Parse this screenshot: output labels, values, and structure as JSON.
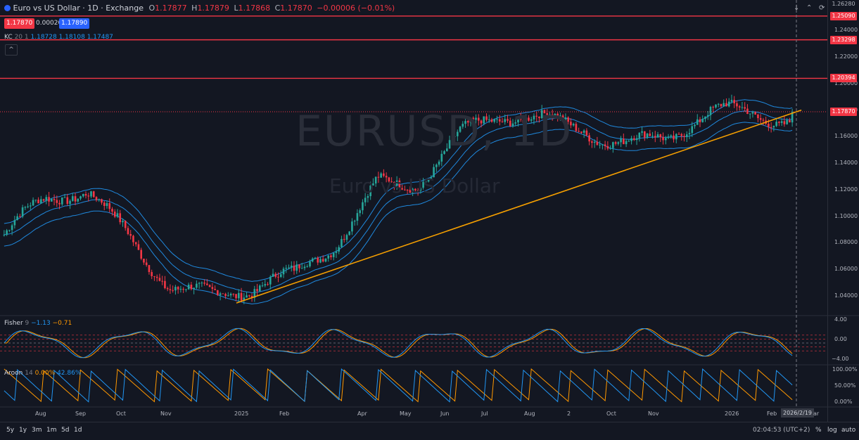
{
  "header": {
    "symbol_title": "Euro vs US Dollar · 1D · Exchange",
    "o_label": "O",
    "o_value": "1.17877",
    "h_label": "H",
    "h_value": "1.17879",
    "l_label": "L",
    "l_value": "1.17868",
    "c_label": "C",
    "c_value": "1.17870",
    "change": "−0.00006 (−0.01%)"
  },
  "trade": {
    "sell": "1.17870",
    "spread": "0.00020",
    "buy": "1.17890"
  },
  "kc": {
    "name": "KC",
    "params": "20 1",
    "v1": "1.18728",
    "v2": "1.18108",
    "v3": "1.17487"
  },
  "fisher": {
    "name": "Fisher",
    "params": "9",
    "v1": "−1.13",
    "v2": "−0.71"
  },
  "aroon": {
    "name": "Aroon",
    "params": "14",
    "v1": "0.00%",
    "v2": "42.86%"
  },
  "watermark": {
    "ticker": "EURUSD, 1D",
    "description": "Euro vs US Dollar"
  },
  "price_scale": {
    "ticks": [
      "1.24000",
      "1.22000",
      "1.20000",
      "1.18000",
      "1.16000",
      "1.14000",
      "1.12000",
      "1.10000",
      "1.08000",
      "1.06000",
      "1.04000"
    ],
    "top_tick": "1.26280",
    "labels": [
      {
        "text": "1.25090",
        "kind": "level"
      },
      {
        "text": "1.23298",
        "kind": "level"
      },
      {
        "text": "1.20394",
        "kind": "level"
      },
      {
        "text": "1.17870",
        "kind": "last"
      }
    ]
  },
  "fisher_scale": [
    "4.00",
    "0.00",
    "−4.00"
  ],
  "aroon_scale": [
    "100.00%",
    "50.00%",
    "0.00%"
  ],
  "x_axis": [
    "Aug",
    "Sep",
    "Oct",
    "Nov",
    "2025",
    "Feb",
    "Apr",
    "May",
    "Jun",
    "Jul",
    "Aug",
    "2",
    "Oct",
    "Nov",
    "2026",
    "Feb"
  ],
  "x_axis_crosshair": "2026/2/19",
  "x_axis_cut": "ar",
  "timeframes": [
    "5y",
    "1y",
    "3m",
    "1m",
    "5d",
    "1d"
  ],
  "bottom_right": {
    "time": "02:04:53 (UTC+2)",
    "percent": "%",
    "log": "log",
    "auto": "auto"
  },
  "colors": {
    "background": "#131722",
    "bullish": "#26a69a",
    "bearish": "#f23645",
    "keltner": "#2196f3",
    "trendline": "#f59f00",
    "level_line": "#f23645",
    "fisher_line1": "#2196f3",
    "fisher_line2": "#ff9800",
    "aroon_up": "#ff9800",
    "aroon_down": "#2196f3"
  },
  "chart_data": {
    "type": "candlestick",
    "symbol": "EURUSD",
    "interval": "1D",
    "y_range": [
      1.025,
      1.263
    ],
    "horizontal_levels": [
      1.2509,
      1.23298,
      1.20394
    ],
    "last_price": 1.1787,
    "trendline": {
      "from": {
        "date": "2024-12-27",
        "price": 1.0345
      },
      "to": {
        "date": "2026-03-05",
        "price": 1.18
      }
    },
    "series_monthly_approx": {
      "dates": [
        "2024-07",
        "2024-08",
        "2024-09",
        "2024-10",
        "2024-11",
        "2024-12",
        "2025-01",
        "2025-02",
        "2025-03",
        "2025-04",
        "2025-05",
        "2025-06",
        "2025-07",
        "2025-08",
        "2025-09",
        "2025-10",
        "2025-11",
        "2025-12",
        "2026-01",
        "2026-02"
      ],
      "close": [
        1.086,
        1.105,
        1.114,
        1.088,
        1.056,
        1.042,
        1.04,
        1.048,
        1.082,
        1.132,
        1.13,
        1.156,
        1.169,
        1.172,
        1.173,
        1.16,
        1.157,
        1.17,
        1.175,
        1.1787
      ]
    }
  }
}
